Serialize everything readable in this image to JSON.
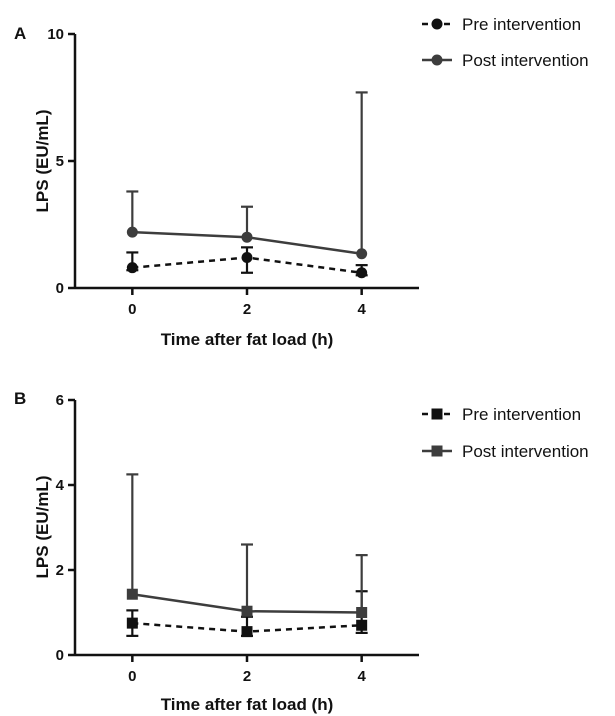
{
  "chart_data": [
    {
      "panel": "A",
      "type": "line",
      "xlabel": "Time after fat load (h)",
      "ylabel": "LPS (EU/mL)",
      "x": [
        0,
        2,
        4
      ],
      "xticks": [
        0,
        2,
        4
      ],
      "xlim": [
        -1,
        5
      ],
      "ylim": [
        0,
        10
      ],
      "yticks": [
        0,
        5,
        10
      ],
      "marker": "circle",
      "legend_position": "top-right",
      "series": [
        {
          "name": "Pre intervention",
          "line_style": "dashed",
          "color": "#111111",
          "values": [
            0.8,
            1.2,
            0.6
          ],
          "error_upper": [
            1.4,
            1.6,
            0.9
          ],
          "error_lower": [
            0.7,
            0.6,
            0.5
          ]
        },
        {
          "name": "Post intervention",
          "line_style": "solid",
          "color": "#3d3d3d",
          "values": [
            2.2,
            2.0,
            1.35
          ],
          "error_upper": [
            3.8,
            3.2,
            7.7
          ],
          "error_lower": null
        }
      ]
    },
    {
      "panel": "B",
      "type": "line",
      "xlabel": "Time after fat load (h)",
      "ylabel": "LPS (EU/mL)",
      "x": [
        0,
        2,
        4
      ],
      "xticks": [
        0,
        2,
        4
      ],
      "xlim": [
        -1,
        5
      ],
      "ylim": [
        0,
        6
      ],
      "yticks": [
        0,
        2,
        4,
        6
      ],
      "marker": "square",
      "legend_position": "top-right",
      "series": [
        {
          "name": "Pre intervention",
          "line_style": "dashed",
          "color": "#111111",
          "values": [
            0.75,
            0.55,
            0.7
          ],
          "error_upper": [
            1.05,
            0.9,
            1.5
          ],
          "error_lower": [
            0.45,
            0.45,
            0.52
          ]
        },
        {
          "name": "Post intervention",
          "line_style": "solid",
          "color": "#3d3d3d",
          "values": [
            1.43,
            1.03,
            1.0
          ],
          "error_upper": [
            4.25,
            2.6,
            2.35
          ],
          "error_lower": null
        }
      ]
    }
  ]
}
